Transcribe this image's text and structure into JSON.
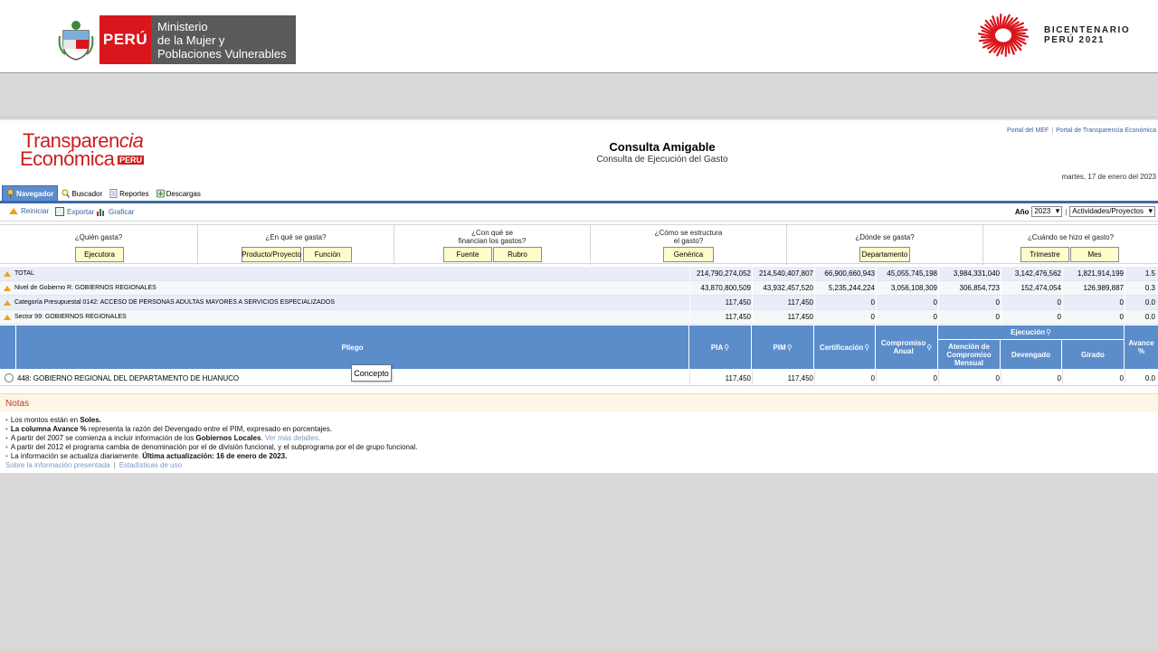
{
  "banner": {
    "peru": "PERÚ",
    "ministry_lines": [
      "Ministerio",
      "de la Mujer y",
      "Poblaciones Vulnerables"
    ],
    "bicentenario_lines": [
      "BICENTENARIO",
      "PERÚ 2021"
    ]
  },
  "app": {
    "logo_line1": "Transparen",
    "logo_line1_tail": "cia",
    "logo_line2": "Económica",
    "logo_peru": "PERU",
    "title": "Consulta Amigable",
    "subtitle": "Consulta de Ejecución del Gasto",
    "links": [
      "Portal del MEF",
      "Portal de Transparencia Económica"
    ],
    "date": "martes, 17 de enero del 2023"
  },
  "tabs": [
    "Navegador",
    "Buscador",
    "Reportes",
    "Descargas"
  ],
  "toolbar": {
    "reiniciar": "Reiniciar",
    "exportar": "Exportar",
    "graficar": "Graficar",
    "year_label": "Año",
    "year_value": "2023",
    "view_value": "Actividades/Proyectos"
  },
  "questions": [
    {
      "label": "¿Quién gasta?",
      "buttons": [
        "Ejecutora"
      ]
    },
    {
      "label": "¿En qué se gasta?",
      "buttons": [
        "Producto/Proyecto",
        "Función"
      ]
    },
    {
      "label": "¿Con qué se financian los gastos?",
      "label_lines": [
        "¿Con qué se",
        "financian los gastos?"
      ],
      "buttons": [
        "Fuente",
        "Rubro"
      ]
    },
    {
      "label": "¿Cómo se estructura el gasto?",
      "label_lines": [
        "¿Cómo se estructura",
        "el gasto?"
      ],
      "buttons": [
        "Genérica"
      ]
    },
    {
      "label": "¿Dónde se gasta?",
      "buttons": [
        "Departamento"
      ]
    },
    {
      "label": "¿Cuándo se hizo el gasto?",
      "buttons": [
        "Trimestre",
        "Mes"
      ]
    }
  ],
  "summary_rows": [
    {
      "label": "TOTAL",
      "values": [
        "214,790,274,052",
        "214,540,407,807",
        "66,900,660,943",
        "45,055,745,198",
        "3,984,331,040",
        "3,142,476,562",
        "1,821,914,199",
        "1.5"
      ]
    },
    {
      "label": "Nivel de Gobierno R: GOBIERNOS REGIONALES",
      "values": [
        "43,870,800,509",
        "43,932,457,520",
        "5,235,244,224",
        "3,056,108,309",
        "306,854,723",
        "152,474,054",
        "126,989,887",
        "0.3"
      ]
    },
    {
      "label": "Categoría Presupuestal 0142: ACCESO DE PERSONAS ADULTAS MAYORES A SERVICIOS ESPECIALIZADOS",
      "values": [
        "117,450",
        "117,450",
        "0",
        "0",
        "0",
        "0",
        "0",
        "0.0"
      ]
    },
    {
      "label": "Sector 99: GOBIERNOS REGIONALES",
      "values": [
        "117,450",
        "117,450",
        "0",
        "0",
        "0",
        "0",
        "0",
        "0.0"
      ]
    }
  ],
  "table": {
    "header": {
      "pliego": "Pliego",
      "pia": "PIA",
      "pim": "PIM",
      "certificacion": "Certificación",
      "compromiso_anual": "Compromiso Anual",
      "ejecucion": "Ejecución",
      "atencion": "Atención de Compromiso Mensual",
      "devengado": "Devengado",
      "girado": "Girado",
      "avance": "Avance %"
    },
    "rows": [
      {
        "label": "448: GOBIERNO REGIONAL DEL DEPARTAMENTO DE HUANUCO",
        "values": [
          "117,450",
          "117,450",
          "0",
          "0",
          "0",
          "0",
          "0",
          "0.0"
        ]
      }
    ],
    "tooltip": "Concepto"
  },
  "notes": {
    "title": "Notas",
    "items": [
      {
        "pre": "Los montos están en ",
        "bold": "Soles.",
        "post": ""
      },
      {
        "pre": "",
        "bold": "La columna Avance %",
        "post": " representa la razón del Devengado entre el PIM, expresado en porcentajes."
      },
      {
        "pre": "A partir del 2007 se comienza a incluir información de los ",
        "bold": "Gobiernos Locales",
        "post": ".",
        "link": " Ver más detalles."
      },
      {
        "pre": "A partir del 2012 el programa cambia de denominación por el de división funcional, y el subprograma por el de grupo funcional.",
        "bold": "",
        "post": ""
      },
      {
        "pre": "La información se actualiza diariamente. ",
        "bold": "Última actualización: 16 de enero de 2023.",
        "post": ""
      }
    ],
    "footer_links": [
      "Sobre la información presentada",
      "Estadísticas de uso"
    ]
  }
}
